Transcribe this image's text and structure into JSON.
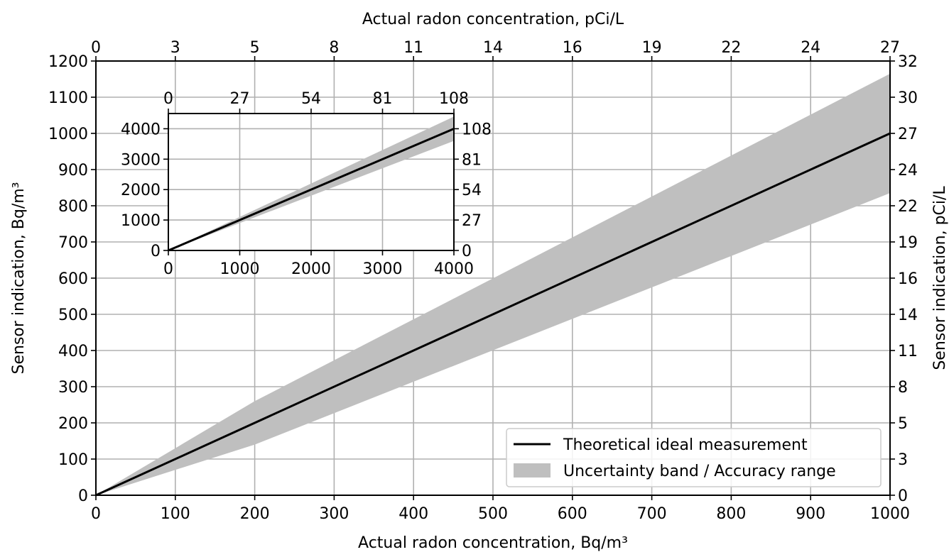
{
  "colors": {
    "line": "#000000",
    "band": "#bfbfbf",
    "grid": "#b0b0b0"
  },
  "chart_data": [
    {
      "id": "main",
      "type": "area",
      "xlabel": "Actual radon concentration, Bq/m³",
      "ylabel": "Sensor indication, Bq/m³",
      "x2label": "Actual radon concentration, pCi/L",
      "y2label": "Sensor indication, pCi/L",
      "xlim": [
        0,
        1000
      ],
      "ylim": [
        0,
        1200
      ],
      "xticks": [
        0,
        100,
        200,
        300,
        400,
        500,
        600,
        700,
        800,
        900,
        1000
      ],
      "yticks": [
        0,
        100,
        200,
        300,
        400,
        500,
        600,
        700,
        800,
        900,
        1000,
        1100,
        1200
      ],
      "x2ticklabels": [
        "0",
        "3",
        "5",
        "8",
        "11",
        "14",
        "16",
        "19",
        "22",
        "24",
        "27"
      ],
      "y2ticklabels": [
        "0",
        "3",
        "5",
        "8",
        "11",
        "14",
        "16",
        "19",
        "22",
        "24",
        "27",
        "30",
        "32"
      ],
      "grid": true,
      "legend_position": "lower-right",
      "series": [
        {
          "name": "Theoretical ideal measurement",
          "kind": "line",
          "x": [
            0,
            1000
          ],
          "y": [
            0,
            1000
          ]
        },
        {
          "name": "Uncertainty band / Accuracy range",
          "kind": "band",
          "x": [
            0,
            200,
            1000
          ],
          "y_upper": [
            0,
            260,
            1165
          ],
          "y_lower": [
            0,
            140,
            835
          ]
        }
      ]
    },
    {
      "id": "inset",
      "type": "area",
      "xlim": [
        0,
        4000
      ],
      "ylim": [
        0,
        4500
      ],
      "xticks": [
        0,
        1000,
        2000,
        3000,
        4000
      ],
      "yticks": [
        0,
        1000,
        2000,
        3000,
        4000
      ],
      "x2ticklabels": [
        "0",
        "27",
        "54",
        "81",
        "108"
      ],
      "y2ticklabels": [
        "0",
        "27",
        "54",
        "81",
        "108"
      ],
      "grid": true,
      "series": [
        {
          "kind": "line",
          "x": [
            0,
            4000
          ],
          "y": [
            0,
            4000
          ]
        },
        {
          "kind": "band",
          "x": [
            0,
            4000
          ],
          "y_upper": [
            0,
            4400
          ],
          "y_lower": [
            0,
            3600
          ]
        }
      ]
    }
  ]
}
